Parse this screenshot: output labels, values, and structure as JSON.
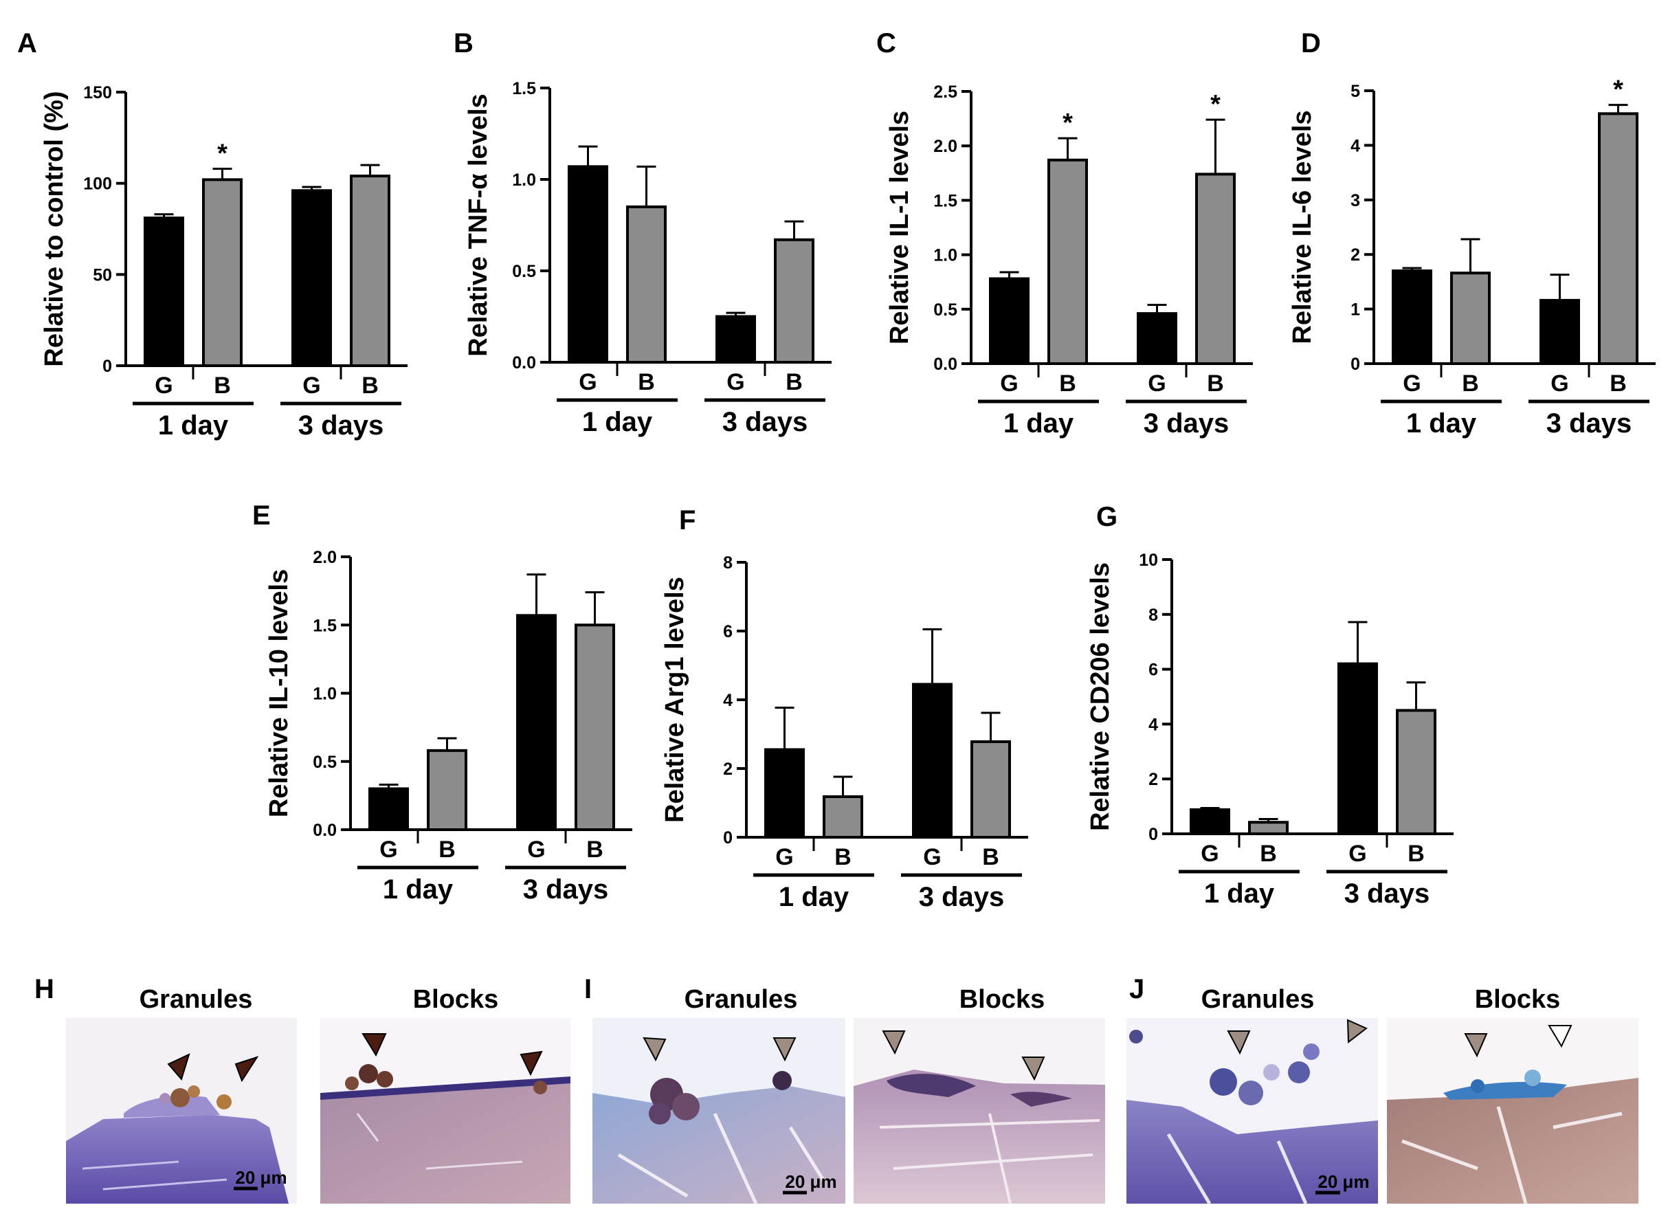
{
  "figure": {
    "histology_letters": [
      "H",
      "I",
      "J"
    ],
    "histology_titles": [
      "Granules",
      "Blocks"
    ],
    "scale_bar_label": "20 μm"
  },
  "colors": {
    "group_G": "#000000",
    "group_B": "#8c8c8c",
    "arrow_dark": "#4a1c12",
    "arrow_light": "#9e8d82",
    "arrow_open": "#ffffff"
  },
  "chart_data": [
    {
      "panel": "A",
      "type": "bar",
      "ylabel": "Relative to control (%)",
      "ylim": [
        0,
        150
      ],
      "yticks": [
        "0",
        "50",
        "100",
        "150"
      ],
      "groups": [
        "1 day",
        "3 days"
      ],
      "bar_labels": [
        "G",
        "B"
      ],
      "series": [
        {
          "name": "G",
          "values": [
            81,
            96
          ],
          "errors": [
            2,
            2
          ]
        },
        {
          "name": "B",
          "values": [
            102,
            104
          ],
          "errors": [
            6,
            6
          ]
        }
      ],
      "significance": [
        [
          0,
          1
        ]
      ]
    },
    {
      "panel": "B",
      "type": "bar",
      "ylabel": "Relative TNF-α levels",
      "ylim": [
        0,
        1.5
      ],
      "yticks": [
        "0.0",
        "0.5",
        "1.0",
        "1.5"
      ],
      "groups": [
        "1 day",
        "3 days"
      ],
      "bar_labels": [
        "G",
        "B"
      ],
      "series": [
        {
          "name": "G",
          "values": [
            1.07,
            0.25
          ],
          "errors": [
            0.11,
            0.02
          ]
        },
        {
          "name": "B",
          "values": [
            0.85,
            0.67
          ],
          "errors": [
            0.22,
            0.1
          ]
        }
      ],
      "significance": []
    },
    {
      "panel": "C",
      "type": "bar",
      "ylabel": "Relative IL-1 levels",
      "ylim": [
        0,
        2.5
      ],
      "yticks": [
        "0.0",
        "0.5",
        "1.0",
        "1.5",
        "2.0",
        "2.5"
      ],
      "groups": [
        "1 day",
        "3 days"
      ],
      "bar_labels": [
        "G",
        "B"
      ],
      "series": [
        {
          "name": "G",
          "values": [
            0.78,
            0.46
          ],
          "errors": [
            0.06,
            0.08
          ]
        },
        {
          "name": "B",
          "values": [
            1.87,
            1.74
          ],
          "errors": [
            0.2,
            0.5
          ]
        }
      ],
      "significance": [
        [
          0,
          1
        ],
        [
          1,
          1
        ]
      ]
    },
    {
      "panel": "D",
      "type": "bar",
      "ylabel": "Relative IL-6 levels",
      "ylim": [
        0,
        5
      ],
      "yticks": [
        "0",
        "1",
        "2",
        "3",
        "4",
        "5"
      ],
      "groups": [
        "1 day",
        "3 days"
      ],
      "bar_labels": [
        "G",
        "B"
      ],
      "series": [
        {
          "name": "G",
          "values": [
            1.7,
            1.16
          ],
          "errors": [
            0.05,
            0.47
          ]
        },
        {
          "name": "B",
          "values": [
            1.66,
            4.58
          ],
          "errors": [
            0.62,
            0.16
          ]
        }
      ],
      "significance": [
        [
          1,
          1
        ]
      ]
    },
    {
      "panel": "E",
      "type": "bar",
      "ylabel": "Relative IL-10 levels",
      "ylim": [
        0,
        2.0
      ],
      "yticks": [
        "0.0",
        "0.5",
        "1.0",
        "1.5",
        "2.0"
      ],
      "groups": [
        "1 day",
        "3 days"
      ],
      "bar_labels": [
        "G",
        "B"
      ],
      "series": [
        {
          "name": "G",
          "values": [
            0.3,
            1.57
          ],
          "errors": [
            0.03,
            0.3
          ]
        },
        {
          "name": "B",
          "values": [
            0.58,
            1.5
          ],
          "errors": [
            0.09,
            0.24
          ]
        }
      ],
      "significance": []
    },
    {
      "panel": "F",
      "type": "bar",
      "ylabel": "Relative Arg1 levels",
      "ylim": [
        0,
        8
      ],
      "yticks": [
        "0",
        "2",
        "4",
        "6",
        "8"
      ],
      "groups": [
        "1 day",
        "3 days"
      ],
      "bar_labels": [
        "G",
        "B"
      ],
      "series": [
        {
          "name": "G",
          "values": [
            2.55,
            4.45
          ],
          "errors": [
            1.22,
            1.6
          ]
        },
        {
          "name": "B",
          "values": [
            1.18,
            2.78
          ],
          "errors": [
            0.58,
            0.84
          ]
        }
      ],
      "significance": []
    },
    {
      "panel": "G",
      "type": "bar",
      "ylabel": "Relative CD206 levels",
      "ylim": [
        0,
        10
      ],
      "yticks": [
        "0",
        "2",
        "4",
        "6",
        "8",
        "10"
      ],
      "groups": [
        "1 day",
        "3 days"
      ],
      "bar_labels": [
        "G",
        "B"
      ],
      "series": [
        {
          "name": "G",
          "values": [
            0.88,
            6.2
          ],
          "errors": [
            0.06,
            1.52
          ]
        },
        {
          "name": "B",
          "values": [
            0.42,
            4.5
          ],
          "errors": [
            0.12,
            1.02
          ]
        }
      ],
      "significance": []
    }
  ]
}
